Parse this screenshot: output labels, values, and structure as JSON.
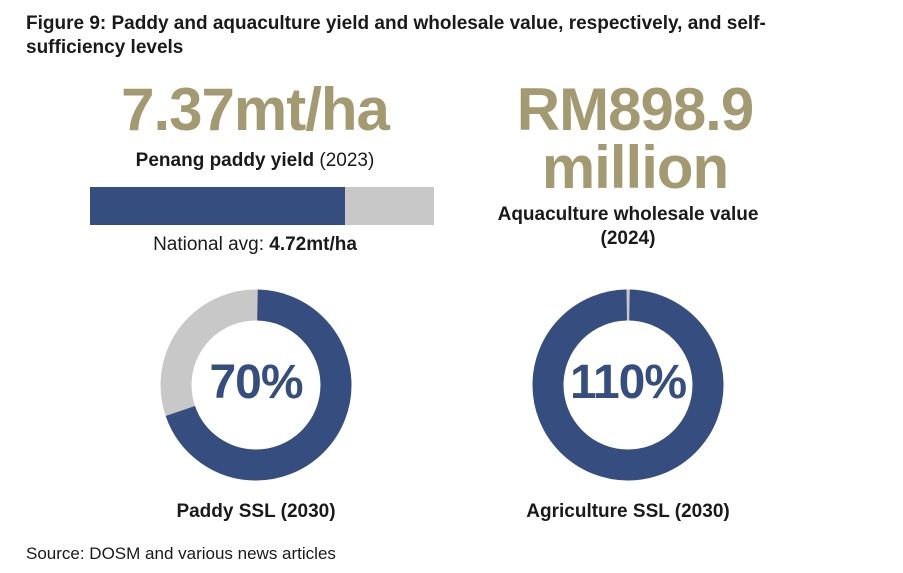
{
  "title": "Figure 9: Paddy and aquaculture yield and wholesale value, respectively, and self-sufficiency levels",
  "paddy_yield": {
    "value": "7.37mt/ha",
    "label_bold": "Penang paddy yield",
    "label_year": "(2023)",
    "national_avg_label": "National avg:",
    "national_avg_value": "4.72mt/ha"
  },
  "aquaculture": {
    "value_line1": "RM898.9",
    "value_line2": "million",
    "label": "Aquaculture wholesale value (2024)"
  },
  "paddy_ssl": {
    "value": "70%",
    "label": "Paddy SSL (2030)"
  },
  "agri_ssl": {
    "value": "110%",
    "label": "Agriculture SSL (2030)"
  },
  "source": "Source: DOSM and various news articles",
  "colors": {
    "navy": "#364d80",
    "gold": "#a39a72",
    "grey": "#c8c8c8"
  },
  "chart_data": [
    {
      "type": "bar",
      "categories": [
        "Penang paddy yield (2023)",
        "National avg"
      ],
      "values": [
        7.37,
        4.72
      ],
      "unit": "mt/ha"
    },
    {
      "type": "pie",
      "labels": [
        "Paddy SSL (2030)"
      ],
      "values": [
        70
      ],
      "unit": "%"
    },
    {
      "type": "pie",
      "labels": [
        "Agriculture SSL (2030)"
      ],
      "values": [
        110
      ],
      "unit": "%"
    }
  ]
}
